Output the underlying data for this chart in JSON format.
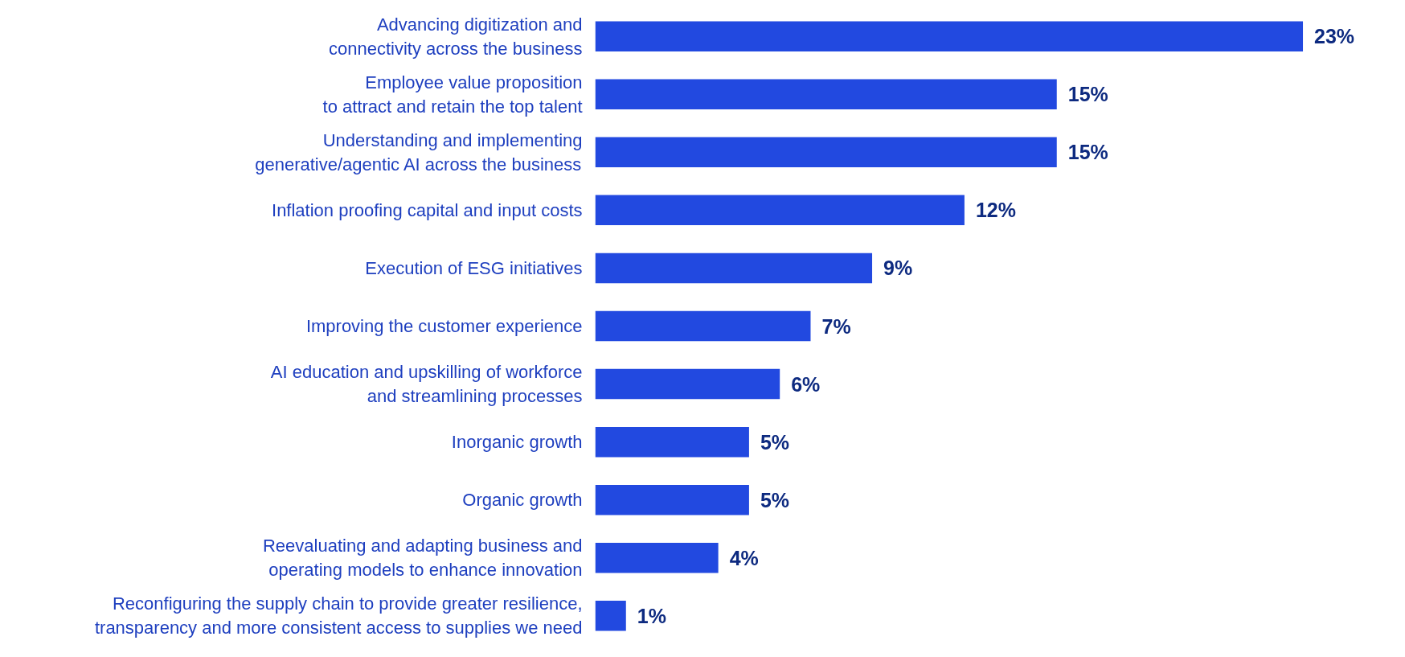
{
  "chart_data": {
    "type": "bar",
    "orientation": "horizontal",
    "color": "#2249e0",
    "categories": [
      "Advancing digitization and\nconnectivity across the business",
      "Employee value proposition\nto attract and retain the top talent",
      "Understanding and implementing\ngenerative/agentic AI across the business",
      "Inflation proofing capital and input costs",
      "Execution of ESG initiatives",
      "Improving the customer experience",
      "AI education and upskilling of workforce\nand streamlining processes",
      "Inorganic growth",
      "Organic growth",
      "Reevaluating and adapting business and\noperating models to enhance innovation",
      "Reconfiguring the supply chain to provide greater resilience,\ntransparency and more consistent access to supplies we need"
    ],
    "values": [
      23,
      15,
      15,
      12,
      9,
      7,
      6,
      5,
      5,
      4,
      1
    ],
    "value_labels": [
      "23%",
      "15%",
      "15%",
      "12%",
      "9%",
      "7%",
      "6%",
      "5%",
      "5%",
      "4%",
      "1%"
    ],
    "grid": false
  }
}
